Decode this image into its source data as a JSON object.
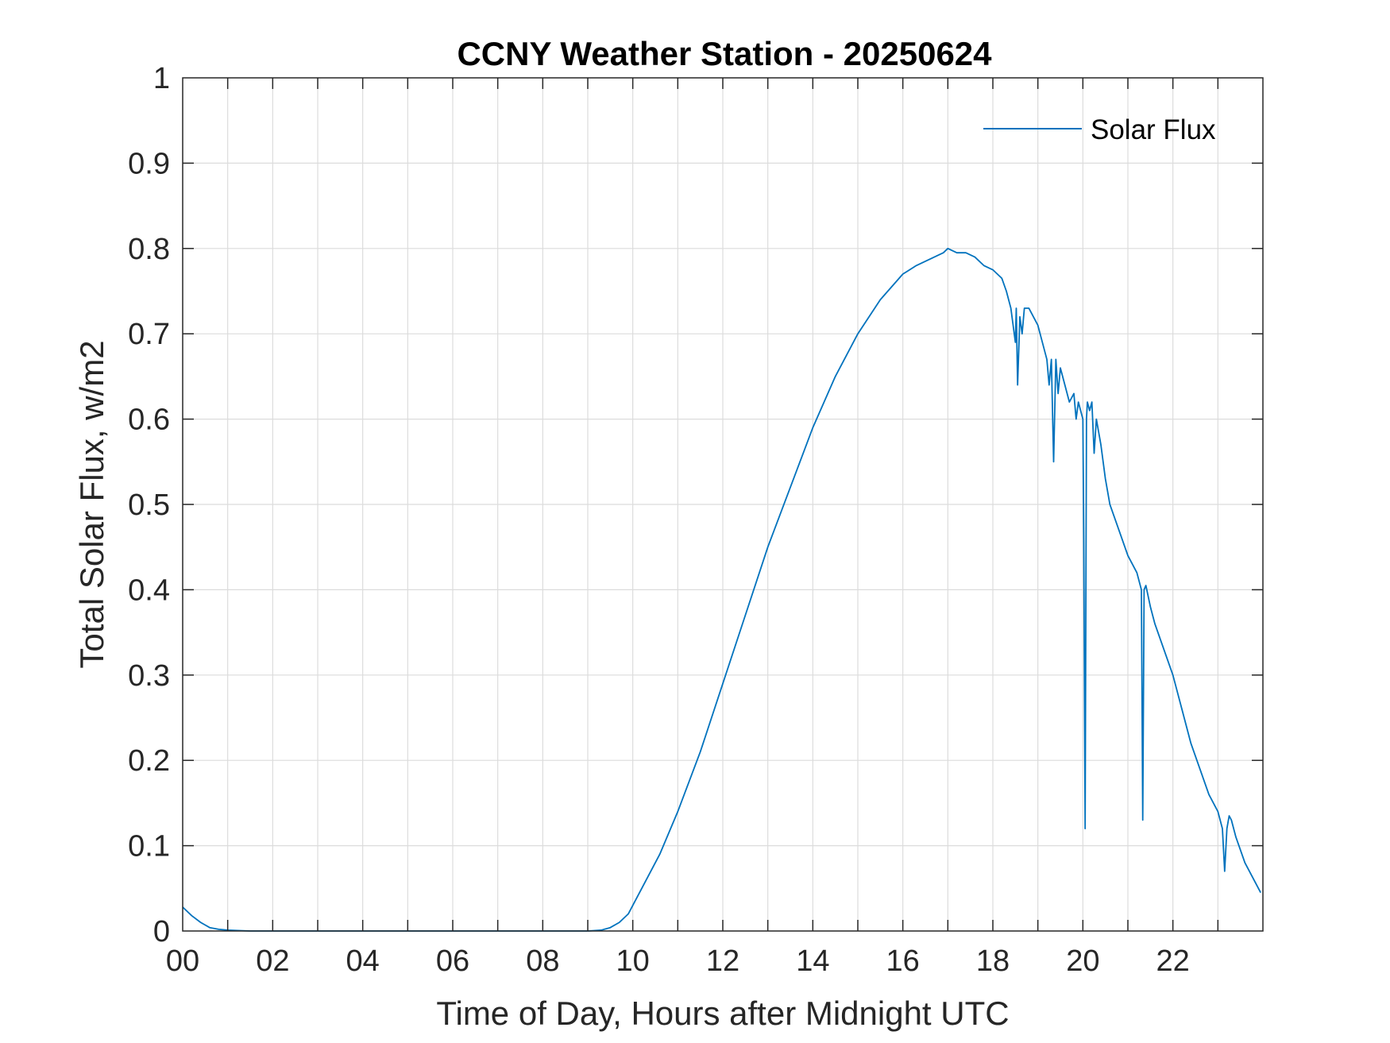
{
  "chart_data": {
    "type": "line",
    "title": "CCNY Weather Station - 20250624",
    "xlabel": "Time of Day, Hours after Midnight UTC",
    "ylabel": "Total Solar Flux, w/m2",
    "xlim": [
      0,
      24
    ],
    "ylim": [
      0,
      1
    ],
    "xticks": [
      0,
      2,
      4,
      6,
      8,
      10,
      12,
      14,
      16,
      18,
      20,
      22
    ],
    "xtick_labels": [
      "00",
      "02",
      "04",
      "06",
      "08",
      "10",
      "12",
      "14",
      "16",
      "18",
      "20",
      "22"
    ],
    "yticks": [
      0,
      0.1,
      0.2,
      0.3,
      0.4,
      0.5,
      0.6,
      0.7,
      0.8,
      0.9,
      1
    ],
    "ytick_labels": [
      "0",
      "0.1",
      "0.2",
      "0.3",
      "0.4",
      "0.5",
      "0.6",
      "0.7",
      "0.8",
      "0.9",
      "1"
    ],
    "grid": true,
    "legend_position": "top-right",
    "series": [
      {
        "name": "Solar Flux",
        "color": "#0072BD",
        "x": [
          0,
          0.2,
          0.4,
          0.6,
          0.8,
          1.0,
          1.5,
          2,
          4,
          6,
          8,
          9.0,
          9.3,
          9.5,
          9.7,
          9.9,
          10.1,
          10.3,
          10.6,
          11.0,
          11.5,
          12.0,
          12.5,
          13.0,
          13.5,
          14.0,
          14.5,
          15.0,
          15.5,
          16.0,
          16.3,
          16.5,
          16.7,
          16.9,
          17.0,
          17.2,
          17.4,
          17.6,
          17.8,
          18.0,
          18.1,
          18.2,
          18.3,
          18.4,
          18.5,
          18.52,
          18.55,
          18.6,
          18.65,
          18.7,
          18.8,
          18.9,
          19.0,
          19.1,
          19.2,
          19.25,
          19.3,
          19.35,
          19.4,
          19.45,
          19.5,
          19.6,
          19.7,
          19.8,
          19.85,
          19.9,
          19.95,
          20.0,
          20.02,
          20.05,
          20.08,
          20.1,
          20.15,
          20.2,
          20.25,
          20.3,
          20.4,
          20.5,
          20.6,
          20.8,
          21.0,
          21.2,
          21.3,
          21.33,
          21.36,
          21.4,
          21.5,
          21.6,
          21.8,
          22.0,
          22.2,
          22.4,
          22.6,
          22.8,
          23.0,
          23.1,
          23.15,
          23.2,
          23.25,
          23.3,
          23.4,
          23.6,
          23.8,
          23.95
        ],
        "y": [
          0.028,
          0.018,
          0.01,
          0.004,
          0.002,
          0.001,
          0.0,
          0.0,
          0.0,
          0.0,
          0.0,
          0.0,
          0.001,
          0.004,
          0.01,
          0.02,
          0.04,
          0.06,
          0.09,
          0.14,
          0.21,
          0.29,
          0.37,
          0.45,
          0.52,
          0.59,
          0.65,
          0.7,
          0.74,
          0.77,
          0.78,
          0.785,
          0.79,
          0.795,
          0.8,
          0.795,
          0.795,
          0.79,
          0.78,
          0.775,
          0.77,
          0.765,
          0.75,
          0.73,
          0.69,
          0.73,
          0.64,
          0.72,
          0.7,
          0.73,
          0.73,
          0.72,
          0.71,
          0.69,
          0.67,
          0.64,
          0.67,
          0.55,
          0.67,
          0.63,
          0.66,
          0.64,
          0.62,
          0.63,
          0.6,
          0.62,
          0.61,
          0.6,
          0.46,
          0.12,
          0.6,
          0.62,
          0.61,
          0.62,
          0.56,
          0.6,
          0.57,
          0.53,
          0.5,
          0.47,
          0.44,
          0.42,
          0.4,
          0.13,
          0.4,
          0.405,
          0.38,
          0.36,
          0.33,
          0.3,
          0.26,
          0.22,
          0.19,
          0.16,
          0.14,
          0.12,
          0.07,
          0.12,
          0.135,
          0.13,
          0.11,
          0.08,
          0.06,
          0.045
        ]
      }
    ]
  }
}
